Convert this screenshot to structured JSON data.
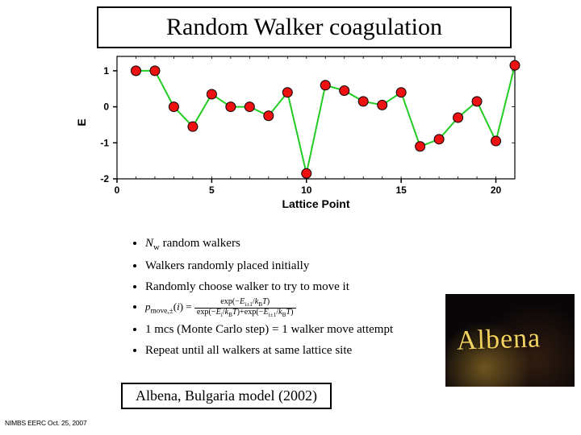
{
  "title": "Random Walker coagulation",
  "caption": "Albena, Bulgaria model  (2002)",
  "footer": "NIMBS EERC Oct. 25, 2007",
  "photo_script": "Albena",
  "chart": {
    "type": "line",
    "xlabel": "Lattice Point",
    "ylabel": "E",
    "xlim": [
      0,
      21
    ],
    "ylim": [
      -2,
      1.4
    ],
    "xtick_positions": [
      0,
      5,
      10,
      15,
      20
    ],
    "xtick_labels": [
      "0",
      "5",
      "10",
      "15",
      "20"
    ],
    "ytick_positions": [
      -2,
      -1,
      0,
      1
    ],
    "ytick_labels": [
      "-2",
      "-1",
      "0",
      "1"
    ],
    "background_color": "#ffffff",
    "frame_color": "#000000",
    "line_color": "#22cc22",
    "line_width": 2,
    "marker_color": "#ee1111",
    "marker_border": "#000000",
    "marker_radius": 6,
    "x": [
      1,
      2,
      3,
      4,
      5,
      6,
      7,
      8,
      9,
      10,
      11,
      12,
      13,
      14,
      15,
      16,
      17,
      18,
      19,
      20,
      21
    ],
    "y": [
      1.0,
      1.0,
      0.0,
      -0.55,
      0.35,
      0.0,
      0.0,
      -0.25,
      0.4,
      -1.85,
      0.6,
      0.45,
      0.15,
      0.05,
      0.4,
      -1.1,
      -0.9,
      -0.3,
      0.15,
      -0.95,
      1.15
    ]
  },
  "bullets": [
    "N_w random walkers",
    "Walkers randomly placed initially",
    "Randomly choose walker to try to move it",
    "p_move formula",
    "1 mcs (Monte Carlo step) = 1 walker move attempt",
    "Repeat until all walkers at same lattice site"
  ]
}
